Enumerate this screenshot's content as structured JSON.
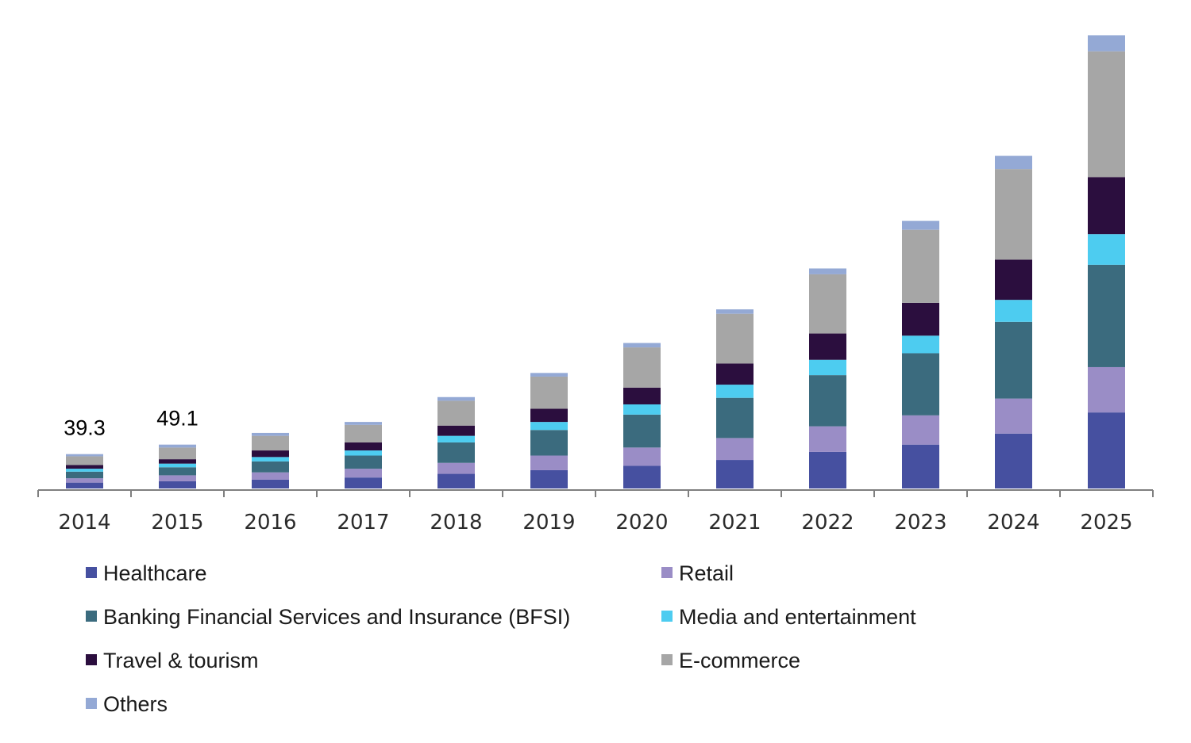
{
  "chart_data": {
    "type": "bar",
    "stacked": true,
    "title": "",
    "xlabel": "",
    "ylabel": "",
    "ylim": [
      0,
      640
    ],
    "grid": false,
    "legend_position": "bottom",
    "categories": [
      "2014",
      "2015",
      "2016",
      "2017",
      "2018",
      "2019",
      "2020",
      "2021",
      "2022",
      "2023",
      "2024",
      "2025"
    ],
    "data_labels": [
      {
        "category": "2014",
        "text": "39.3"
      },
      {
        "category": "2015",
        "text": "49.1"
      }
    ],
    "series": [
      {
        "name": "Healthcare",
        "color": "#4650A0",
        "values": [
          8,
          10,
          12,
          15,
          20,
          25,
          31,
          39,
          50,
          60,
          75,
          104
        ]
      },
      {
        "name": "Retail",
        "color": "#9A8DC6",
        "values": [
          6,
          8,
          10,
          12,
          15,
          20,
          25,
          30,
          35,
          40,
          48,
          62
        ]
      },
      {
        "name": "Banking Financial Services and Insurance (BFSI)",
        "color": "#3B6B7E",
        "values": [
          9,
          11,
          15,
          18,
          28,
          35,
          45,
          55,
          70,
          85,
          105,
          140
        ]
      },
      {
        "name": "Media and entertainment",
        "color": "#4DCCF0",
        "values": [
          4,
          5,
          6,
          7,
          9,
          11,
          14,
          18,
          21,
          24,
          30,
          42
        ]
      },
      {
        "name": "Travel & tourism",
        "color": "#2B0E3E",
        "values": [
          5,
          6,
          9,
          11,
          14,
          18,
          23,
          29,
          36,
          45,
          55,
          78
        ]
      },
      {
        "name": "E-commerce",
        "color": "#A6A6A6",
        "values": [
          12,
          16,
          20,
          24,
          34,
          44,
          55,
          68,
          81,
          100,
          124,
          172
        ]
      },
      {
        "name": "Others",
        "color": "#94A9D5",
        "values": [
          3,
          4,
          4,
          4,
          5,
          5,
          6,
          6,
          8,
          12,
          18,
          22
        ]
      }
    ]
  }
}
